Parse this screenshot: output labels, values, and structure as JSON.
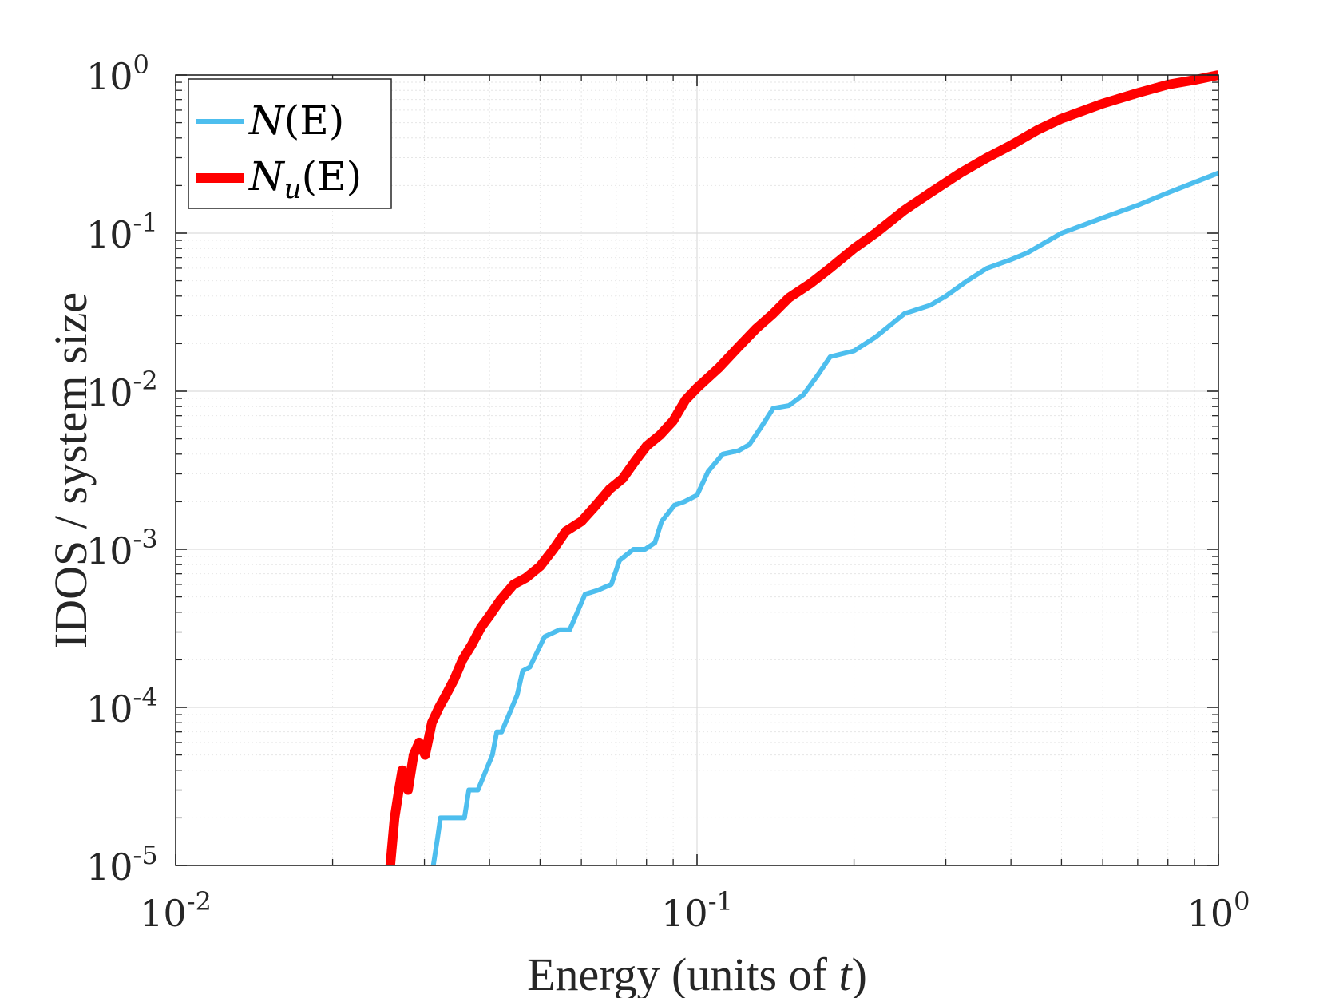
{
  "chart_data": {
    "type": "line",
    "xscale": "log",
    "yscale": "log",
    "xlim": [
      0.01,
      1
    ],
    "ylim": [
      1e-05,
      1
    ],
    "grid": true,
    "minor_grid": true,
    "xlabel": "Energy (units of t)",
    "xlabel_parts": {
      "prefix": "Energy (units of ",
      "var": "t",
      "suffix": ")"
    },
    "ylabel": "IDOS / system size",
    "x_ticks": [
      {
        "value": 0.01,
        "base": "10",
        "exp": "-2"
      },
      {
        "value": 0.1,
        "base": "10",
        "exp": "-1"
      },
      {
        "value": 1,
        "base": "10",
        "exp": "0"
      }
    ],
    "y_ticks": [
      {
        "value": 1,
        "base": "10",
        "exp": "0"
      },
      {
        "value": 0.1,
        "base": "10",
        "exp": "-1"
      },
      {
        "value": 0.01,
        "base": "10",
        "exp": "-2"
      },
      {
        "value": 0.001,
        "base": "10",
        "exp": "-3"
      },
      {
        "value": 0.0001,
        "base": "10",
        "exp": "-4"
      },
      {
        "value": 1e-05,
        "base": "10",
        "exp": "-5"
      }
    ],
    "legend_position": "top-left",
    "series": [
      {
        "name": "N(E)",
        "label_main": "N",
        "label_sub": "",
        "label_arg": "(E)",
        "color": "#4dbeee",
        "x": [
          0.0312,
          0.0318,
          0.0322,
          0.0358,
          0.0365,
          0.038,
          0.0405,
          0.0413,
          0.0422,
          0.0452,
          0.0463,
          0.0478,
          0.051,
          0.0545,
          0.057,
          0.061,
          0.0645,
          0.0685,
          0.071,
          0.0755,
          0.0795,
          0.083,
          0.0855,
          0.0905,
          0.0945,
          0.1,
          0.105,
          0.112,
          0.12,
          0.126,
          0.133,
          0.14,
          0.15,
          0.16,
          0.17,
          0.18,
          0.2,
          0.22,
          0.25,
          0.28,
          0.3,
          0.33,
          0.36,
          0.4,
          0.43,
          0.5,
          0.6,
          0.7,
          0.8,
          1.0
        ],
        "y": [
          1e-05,
          1.5e-05,
          2e-05,
          2e-05,
          3e-05,
          3e-05,
          5e-05,
          7e-05,
          7e-05,
          0.00012,
          0.00017,
          0.00018,
          0.00028,
          0.00031,
          0.00031,
          0.00052,
          0.00055,
          0.0006,
          0.00085,
          0.001,
          0.001,
          0.0011,
          0.0015,
          0.0019,
          0.002,
          0.0022,
          0.0031,
          0.004,
          0.0042,
          0.0046,
          0.006,
          0.0078,
          0.0081,
          0.0095,
          0.0125,
          0.0165,
          0.018,
          0.022,
          0.031,
          0.035,
          0.04,
          0.05,
          0.06,
          0.068,
          0.075,
          0.1,
          0.125,
          0.15,
          0.18,
          0.24
        ]
      },
      {
        "name": "N_u(E)",
        "label_main": "N",
        "label_sub": "u",
        "label_arg": "(E)",
        "color": "#ff0000",
        "x": [
          0.0258,
          0.0263,
          0.0268,
          0.0272,
          0.0279,
          0.0286,
          0.0293,
          0.0301,
          0.031,
          0.032,
          0.033,
          0.0342,
          0.0355,
          0.037,
          0.0385,
          0.04,
          0.042,
          0.0445,
          0.047,
          0.05,
          0.053,
          0.056,
          0.06,
          0.064,
          0.068,
          0.072,
          0.076,
          0.08,
          0.085,
          0.09,
          0.095,
          0.1,
          0.11,
          0.12,
          0.13,
          0.14,
          0.15,
          0.165,
          0.18,
          0.2,
          0.22,
          0.25,
          0.28,
          0.32,
          0.36,
          0.4,
          0.45,
          0.5,
          0.6,
          0.7,
          0.8,
          0.9,
          1.0
        ],
        "y": [
          1e-05,
          2e-05,
          3e-05,
          4e-05,
          3e-05,
          5e-05,
          6e-05,
          5e-05,
          8e-05,
          0.0001,
          0.00012,
          0.00015,
          0.0002,
          0.00025,
          0.00032,
          0.00038,
          0.00048,
          0.0006,
          0.00066,
          0.00078,
          0.001,
          0.0013,
          0.0015,
          0.0019,
          0.0024,
          0.0028,
          0.0036,
          0.0045,
          0.0053,
          0.0065,
          0.0088,
          0.0105,
          0.014,
          0.019,
          0.025,
          0.031,
          0.039,
          0.048,
          0.06,
          0.08,
          0.1,
          0.14,
          0.18,
          0.24,
          0.3,
          0.36,
          0.45,
          0.53,
          0.66,
          0.77,
          0.87,
          0.93,
          1.0
        ]
      }
    ]
  }
}
